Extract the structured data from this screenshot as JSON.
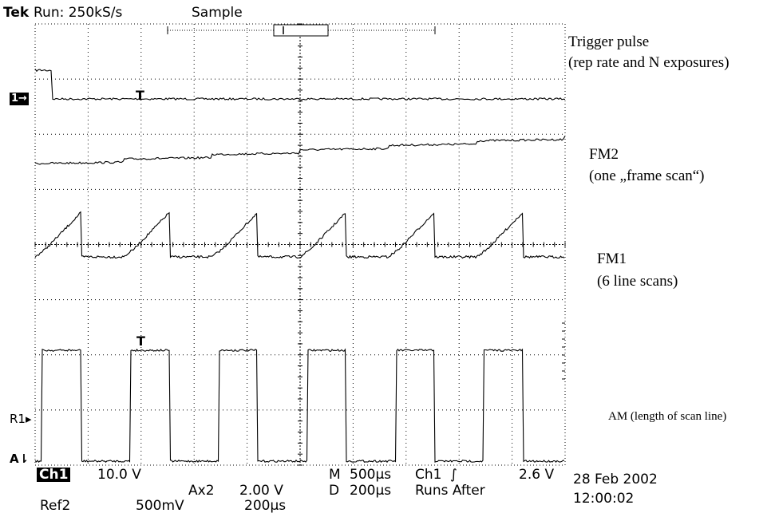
{
  "header": {
    "brand": "Tek",
    "status": "Run: 250kS/s",
    "mode": "Sample"
  },
  "annotations": {
    "trigger": [
      "Trigger pulse",
      "(rep rate and N exposures)"
    ],
    "fm2": [
      "FM2",
      "(one „frame scan“)"
    ],
    "fm1": [
      "FM1",
      "(6 line scans)"
    ],
    "am": "AM (length of scan line)"
  },
  "markers": {
    "ch1": "1→",
    "r1": "R1▸",
    "a": "A⇂",
    "trigger_t": "T"
  },
  "readout": {
    "ch1_label": "Ch1",
    "ch1_scale": "10.0 V",
    "ref2_label": "Ref2",
    "ref2_scale": "500mV",
    "ax2_label": "Ax2",
    "ax2_scale": "2.00 V",
    "ax2_time": "200µs",
    "m_label": "M",
    "m_time": "500µs",
    "d_label": "D",
    "d_time": "200µs",
    "trig_src": "Ch1",
    "trig_slope": "∫",
    "trig_level": "2.6 V",
    "trig_mode": "Runs After",
    "date": "28 Feb 2002",
    "time": "12:00:02"
  },
  "chart_data": {
    "type": "line",
    "grid": true,
    "time_divisions": 10,
    "vertical_divisions": 8,
    "series": [
      {
        "name": "Trigger pulse",
        "pattern": "single pulse at start then flat low",
        "pulse_end_div": 0.5
      },
      {
        "name": "FM2",
        "pattern": "staircase ramp",
        "steps": 6,
        "rise_divisions": 1.1
      },
      {
        "name": "FM1",
        "pattern": "sawtooth ramps",
        "count": 6,
        "amplitude_divisions": 1.3
      },
      {
        "name": "AM",
        "pattern": "square pulses",
        "count": 6,
        "amplitude_divisions": 3.0
      }
    ]
  }
}
